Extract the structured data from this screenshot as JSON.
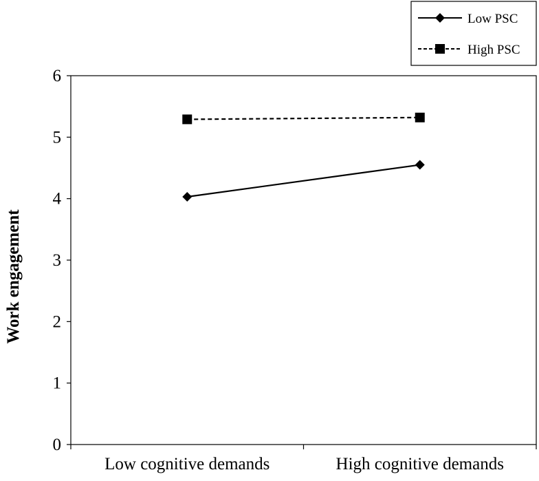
{
  "chart_data": {
    "type": "line",
    "categories": [
      "Low cognitive demands",
      "High cognitive demands"
    ],
    "ylabel": "Work engagement",
    "xlabel": "",
    "ylim": [
      0,
      6
    ],
    "yticks": [
      "0",
      "1",
      "2",
      "3",
      "4",
      "5",
      "6"
    ],
    "grid": false,
    "legend_position": "top-right",
    "series": [
      {
        "name": "Low PSC",
        "values": [
          4.03,
          4.55
        ],
        "marker": "diamond",
        "line": "solid",
        "color": "#000000"
      },
      {
        "name": "High PSC",
        "values": [
          5.29,
          5.32
        ],
        "marker": "square",
        "line": "dashed",
        "color": "#000000"
      }
    ]
  }
}
